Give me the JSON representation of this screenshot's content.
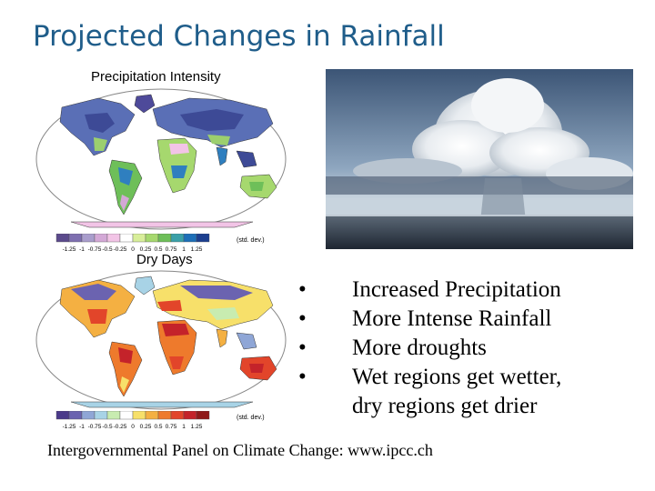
{
  "slide": {
    "title": "Projected Changes in Rainfall"
  },
  "maps": [
    {
      "label": "Precipitation Intensity",
      "colorbar": {
        "ticks": [
          "-1.25",
          "-1",
          "-0.75",
          "-0.5",
          "-0.25",
          "0",
          "0.25",
          "0.5",
          "0.75",
          "1",
          "1.25"
        ],
        "unit": "(std. dev.)",
        "colors": [
          "#5b4a8c",
          "#7e6fb0",
          "#a99dcc",
          "#d3a8d6",
          "#f2c4e6",
          "#ffffff",
          "#d8ee9a",
          "#a6d86e",
          "#6ebf59",
          "#3aa0a8",
          "#1d6fb8",
          "#1c3f8f"
        ]
      }
    },
    {
      "label": "Dry Days",
      "colorbar": {
        "ticks": [
          "-1.25",
          "-1",
          "-0.75",
          "-0.5",
          "-0.25",
          "0",
          "0.25",
          "0.5",
          "0.75",
          "1",
          "1.25"
        ],
        "unit": "(std. dev.)",
        "colors": [
          "#4b3a8a",
          "#6b63b0",
          "#8fa6d6",
          "#a8d3e6",
          "#c8ecb0",
          "#ffffff",
          "#f7e06a",
          "#f4b042",
          "#ee7a2c",
          "#e2452a",
          "#c4232a",
          "#8f1a1a"
        ]
      }
    }
  ],
  "bullets": [
    "Increased Precipitation",
    "More Intense Rainfall",
    "More droughts",
    "Wet regions get wetter,",
    "dry regions get drier"
  ],
  "bullet_symbol": "•",
  "source": "Intergovernmental Panel on Climate Change: www.ipcc.ch"
}
